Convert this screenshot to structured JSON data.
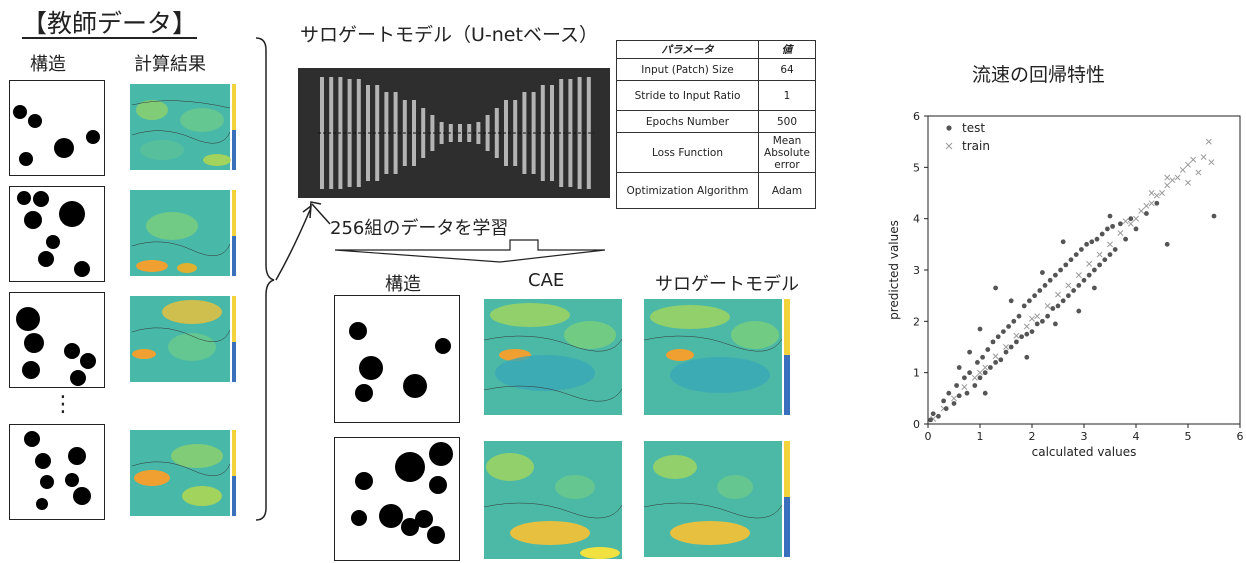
{
  "teacher_data": {
    "title": "【教師データ】",
    "col_structure": "構造",
    "col_result": "計算結果",
    "ellipsis": "⋮"
  },
  "surrogate": {
    "title": "サロゲートモデル（U-netベース）",
    "train_label": "256組のデータを学習"
  },
  "params_table": {
    "headers": [
      "パラメータ",
      "値"
    ],
    "rows": [
      [
        "Input (Patch) Size",
        "64"
      ],
      [
        "Stride to Input Ratio",
        "1"
      ],
      [
        "Epochs Number",
        "500"
      ],
      [
        "Loss Function",
        "Mean Absolute error"
      ],
      [
        "Optimization Algorithm",
        "Adam"
      ]
    ]
  },
  "comparison": {
    "col_structure": "構造",
    "col_cae": "CAE",
    "col_surrogate": "サロゲートモデル"
  },
  "regression": {
    "title": "流速の回帰特性"
  },
  "chart_data": {
    "type": "scatter",
    "title": "流速の回帰特性",
    "xlabel": "calculated values",
    "ylabel": "predicted values",
    "xlim": [
      0,
      6
    ],
    "ylim": [
      0,
      6
    ],
    "xticks": [
      "0",
      "1",
      "2",
      "3",
      "4",
      "5",
      "6"
    ],
    "yticks": [
      "0",
      "1",
      "2",
      "3",
      "4",
      "5",
      "6"
    ],
    "grid": false,
    "legend_position": "top-left",
    "series": [
      {
        "name": "test",
        "marker": "dot",
        "color": "#555555",
        "points": [
          [
            0.05,
            0.08
          ],
          [
            0.1,
            0.2
          ],
          [
            0.2,
            0.15
          ],
          [
            0.3,
            0.45
          ],
          [
            0.35,
            0.3
          ],
          [
            0.4,
            0.6
          ],
          [
            0.5,
            0.4
          ],
          [
            0.55,
            0.75
          ],
          [
            0.6,
            0.55
          ],
          [
            0.7,
            0.9
          ],
          [
            0.75,
            0.6
          ],
          [
            0.8,
            1.0
          ],
          [
            0.9,
            0.75
          ],
          [
            0.95,
            1.2
          ],
          [
            1.0,
            0.9
          ],
          [
            1.05,
            1.3
          ],
          [
            1.1,
            1.0
          ],
          [
            1.15,
            1.45
          ],
          [
            1.2,
            1.1
          ],
          [
            1.25,
            1.6
          ],
          [
            1.3,
            1.2
          ],
          [
            1.35,
            1.7
          ],
          [
            1.4,
            1.25
          ],
          [
            1.45,
            1.8
          ],
          [
            1.5,
            1.4
          ],
          [
            1.55,
            1.9
          ],
          [
            1.6,
            1.5
          ],
          [
            1.65,
            2.0
          ],
          [
            1.7,
            1.6
          ],
          [
            1.75,
            2.1
          ],
          [
            1.8,
            1.7
          ],
          [
            1.85,
            2.3
          ],
          [
            1.9,
            1.75
          ],
          [
            1.95,
            2.4
          ],
          [
            2.0,
            1.8
          ],
          [
            2.05,
            2.5
          ],
          [
            2.1,
            1.95
          ],
          [
            2.15,
            2.6
          ],
          [
            2.2,
            2.0
          ],
          [
            2.25,
            2.7
          ],
          [
            2.3,
            2.1
          ],
          [
            2.35,
            2.8
          ],
          [
            2.4,
            2.25
          ],
          [
            2.45,
            2.9
          ],
          [
            2.5,
            2.3
          ],
          [
            2.55,
            3.0
          ],
          [
            2.6,
            2.4
          ],
          [
            2.65,
            3.1
          ],
          [
            2.7,
            2.5
          ],
          [
            2.75,
            3.2
          ],
          [
            2.8,
            2.6
          ],
          [
            2.85,
            3.3
          ],
          [
            2.9,
            2.7
          ],
          [
            2.95,
            3.4
          ],
          [
            3.0,
            2.8
          ],
          [
            3.05,
            3.5
          ],
          [
            3.1,
            2.9
          ],
          [
            3.15,
            3.55
          ],
          [
            3.2,
            3.0
          ],
          [
            3.25,
            3.6
          ],
          [
            3.3,
            3.1
          ],
          [
            3.35,
            3.7
          ],
          [
            3.4,
            3.2
          ],
          [
            3.45,
            3.8
          ],
          [
            3.5,
            3.3
          ],
          [
            3.55,
            3.85
          ],
          [
            3.6,
            3.4
          ],
          [
            3.7,
            3.9
          ],
          [
            3.8,
            3.6
          ],
          [
            3.9,
            4.0
          ],
          [
            4.0,
            3.8
          ],
          [
            4.2,
            4.1
          ],
          [
            4.4,
            4.3
          ],
          [
            4.6,
            3.5
          ],
          [
            1.3,
            2.65
          ],
          [
            2.6,
            3.55
          ],
          [
            1.0,
            1.85
          ],
          [
            0.8,
            1.4
          ],
          [
            2.9,
            2.2
          ],
          [
            1.9,
            1.3
          ],
          [
            3.5,
            4.05
          ],
          [
            5.5,
            4.05
          ],
          [
            2.2,
            2.95
          ],
          [
            1.6,
            2.4
          ],
          [
            2.45,
            1.95
          ],
          [
            3.2,
            2.65
          ],
          [
            0.6,
            1.1
          ],
          [
            1.1,
            0.6
          ]
        ]
      },
      {
        "name": "train",
        "marker": "x",
        "color": "#9a9a9a",
        "points": [
          [
            0.1,
            0.1
          ],
          [
            0.3,
            0.3
          ],
          [
            0.5,
            0.5
          ],
          [
            0.7,
            0.72
          ],
          [
            0.9,
            0.9
          ],
          [
            1.1,
            1.1
          ],
          [
            1.3,
            1.32
          ],
          [
            1.5,
            1.5
          ],
          [
            1.7,
            1.72
          ],
          [
            1.9,
            1.9
          ],
          [
            2.1,
            2.1
          ],
          [
            2.3,
            2.3
          ],
          [
            2.5,
            2.52
          ],
          [
            2.7,
            2.7
          ],
          [
            2.9,
            2.9
          ],
          [
            3.1,
            3.12
          ],
          [
            3.3,
            3.3
          ],
          [
            3.5,
            3.5
          ],
          [
            3.7,
            3.72
          ],
          [
            3.9,
            3.9
          ],
          [
            4.0,
            4.0
          ],
          [
            4.1,
            4.15
          ],
          [
            4.2,
            4.25
          ],
          [
            4.3,
            4.3
          ],
          [
            4.4,
            4.45
          ],
          [
            4.5,
            4.5
          ],
          [
            4.6,
            4.65
          ],
          [
            4.7,
            4.75
          ],
          [
            4.8,
            4.8
          ],
          [
            4.9,
            4.95
          ],
          [
            5.0,
            5.05
          ],
          [
            5.1,
            5.15
          ],
          [
            5.2,
            4.9
          ],
          [
            5.3,
            5.2
          ],
          [
            5.4,
            5.5
          ],
          [
            5.45,
            5.1
          ],
          [
            5.0,
            4.7
          ],
          [
            4.6,
            4.8
          ],
          [
            4.3,
            4.5
          ],
          [
            3.8,
            3.95
          ],
          [
            2.0,
            2.05
          ],
          [
            1.0,
            1.0
          ]
        ]
      }
    ]
  }
}
